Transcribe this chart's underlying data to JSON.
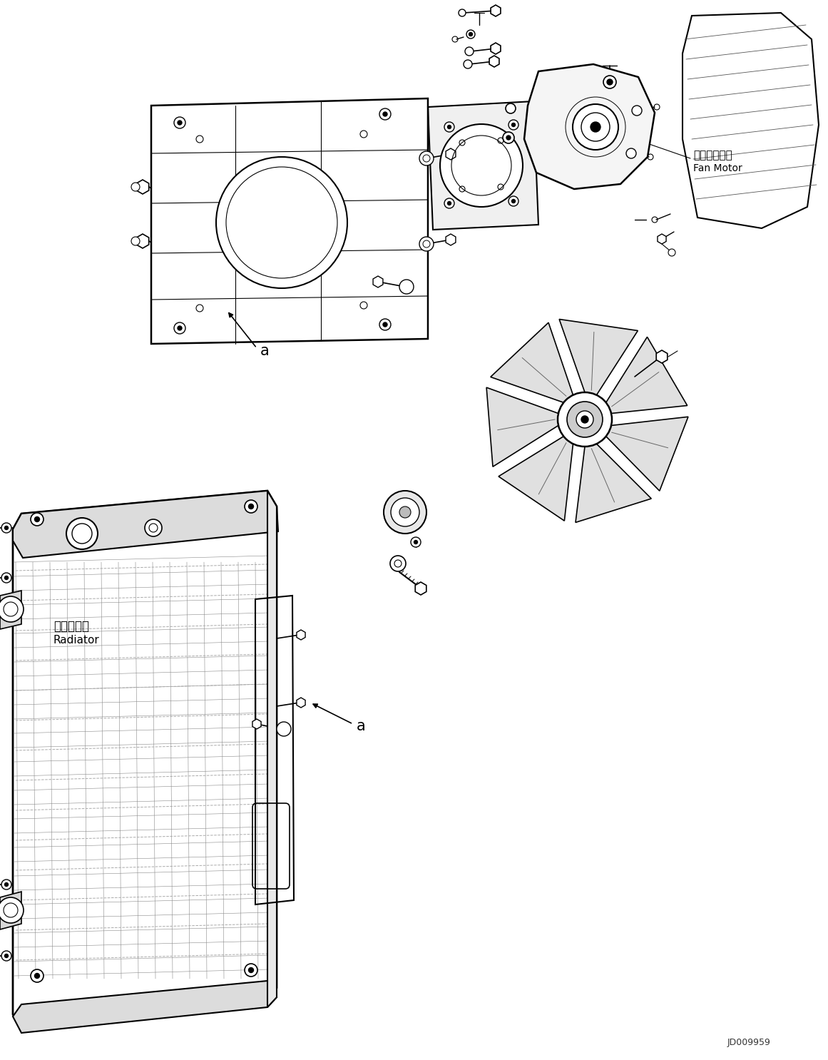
{
  "figsize": [
    11.61,
    14.86
  ],
  "dpi": 100,
  "bg_color": "#ffffff",
  "watermark": "JD009959",
  "labels": {
    "fan_motor_jp": "ファンモータ",
    "fan_motor_en": "Fan Motor",
    "radiator_jp": "ラジエータ",
    "radiator_en": "Radiator",
    "label_a": "a"
  },
  "line_color": "#000000",
  "grid_color": "#888888"
}
